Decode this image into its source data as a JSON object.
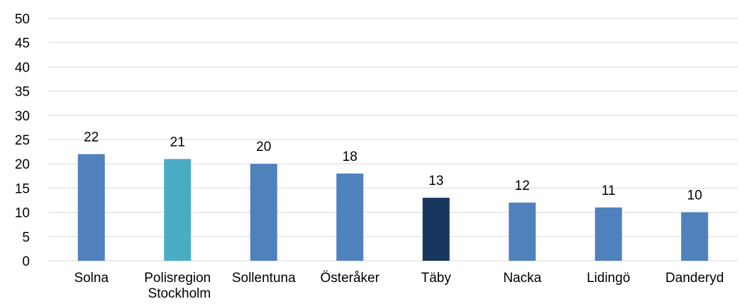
{
  "chart_data": {
    "type": "bar",
    "categories": [
      "Solna",
      "Polisregion Stockholm",
      "Sollentuna",
      "Österåker",
      "Täby",
      "Nacka",
      "Lidingö",
      "Danderyd"
    ],
    "values": [
      22,
      21,
      20,
      18,
      13,
      12,
      11,
      10
    ],
    "colors": [
      "#4f81bd",
      "#4bacc6",
      "#4f81bd",
      "#4f81bd",
      "#17375e",
      "#4f81bd",
      "#4f81bd",
      "#4f81bd"
    ],
    "ylim": [
      0,
      50
    ],
    "yticks": [
      0,
      5,
      10,
      15,
      20,
      25,
      30,
      35,
      40,
      45,
      50
    ],
    "grid": true
  }
}
